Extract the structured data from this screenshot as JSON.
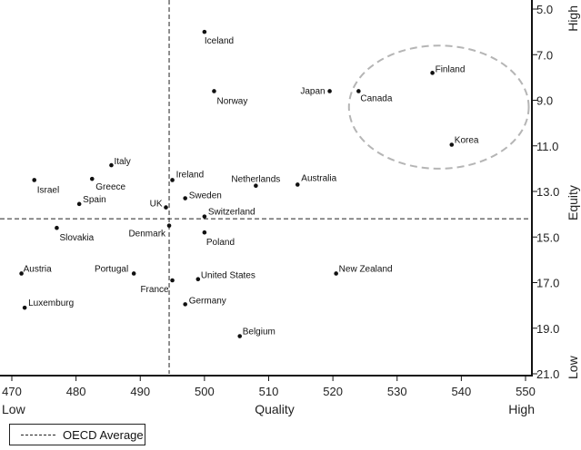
{
  "chart_data": {
    "type": "scatter",
    "title": "",
    "xlabel": "Quality",
    "ylabel": "Equity",
    "x_low_label": "Low",
    "x_high_label": "High",
    "y_low_label": "Low",
    "y_high_label": "High",
    "xlim": [
      470,
      550
    ],
    "ylim": [
      5.0,
      21.0
    ],
    "y_reversed": true,
    "xticks": [
      470,
      480,
      490,
      500,
      510,
      520,
      530,
      540,
      550
    ],
    "yticks": [
      "5.0",
      "7.0",
      "9.0",
      "11.0",
      "13.0",
      "15.0",
      "17.0",
      "19.0",
      "21.0"
    ],
    "reference_lines": {
      "oecd_x": 494.5,
      "oecd_y": 14.2
    },
    "legend": {
      "label": "OECD Average",
      "position": "bottom-left"
    },
    "highlight": {
      "center_x": 536.5,
      "center_y": 9.3,
      "radius_x": 14,
      "radius_y": 2.7
    },
    "points": [
      {
        "name": "Iceland",
        "x": 500,
        "y": 6.0
      },
      {
        "name": "Finland",
        "x": 535.5,
        "y": 7.8
      },
      {
        "name": "Norway",
        "x": 501.5,
        "y": 8.6
      },
      {
        "name": "Japan",
        "x": 519.5,
        "y": 8.6
      },
      {
        "name": "Canada",
        "x": 524,
        "y": 8.6
      },
      {
        "name": "Korea",
        "x": 538.5,
        "y": 10.95
      },
      {
        "name": "Italy",
        "x": 485.5,
        "y": 11.85
      },
      {
        "name": "Ireland",
        "x": 495,
        "y": 12.5
      },
      {
        "name": "Netherlands",
        "x": 508,
        "y": 12.75
      },
      {
        "name": "Australia",
        "x": 514.5,
        "y": 12.7
      },
      {
        "name": "Israel",
        "x": 473.5,
        "y": 12.5
      },
      {
        "name": "Greece",
        "x": 482.5,
        "y": 12.45
      },
      {
        "name": "Spain",
        "x": 480.5,
        "y": 13.55
      },
      {
        "name": "Sweden",
        "x": 497,
        "y": 13.3
      },
      {
        "name": "UK",
        "x": 494,
        "y": 13.7
      },
      {
        "name": "Switzerland",
        "x": 500,
        "y": 14.1
      },
      {
        "name": "Slovakia",
        "x": 477,
        "y": 14.6
      },
      {
        "name": "Denmark",
        "x": 494.5,
        "y": 14.5
      },
      {
        "name": "Poland",
        "x": 500,
        "y": 14.8
      },
      {
        "name": "Austria",
        "x": 471.5,
        "y": 16.6
      },
      {
        "name": "Portugal",
        "x": 489,
        "y": 16.6
      },
      {
        "name": "France",
        "x": 495,
        "y": 16.9
      },
      {
        "name": "United States",
        "x": 499,
        "y": 16.85
      },
      {
        "name": "New Zealand",
        "x": 520.5,
        "y": 16.6
      },
      {
        "name": "Luxemburg",
        "x": 472,
        "y": 18.1
      },
      {
        "name": "Germany",
        "x": 497,
        "y": 17.95
      },
      {
        "name": "Belgium",
        "x": 505.5,
        "y": 19.35
      }
    ]
  }
}
